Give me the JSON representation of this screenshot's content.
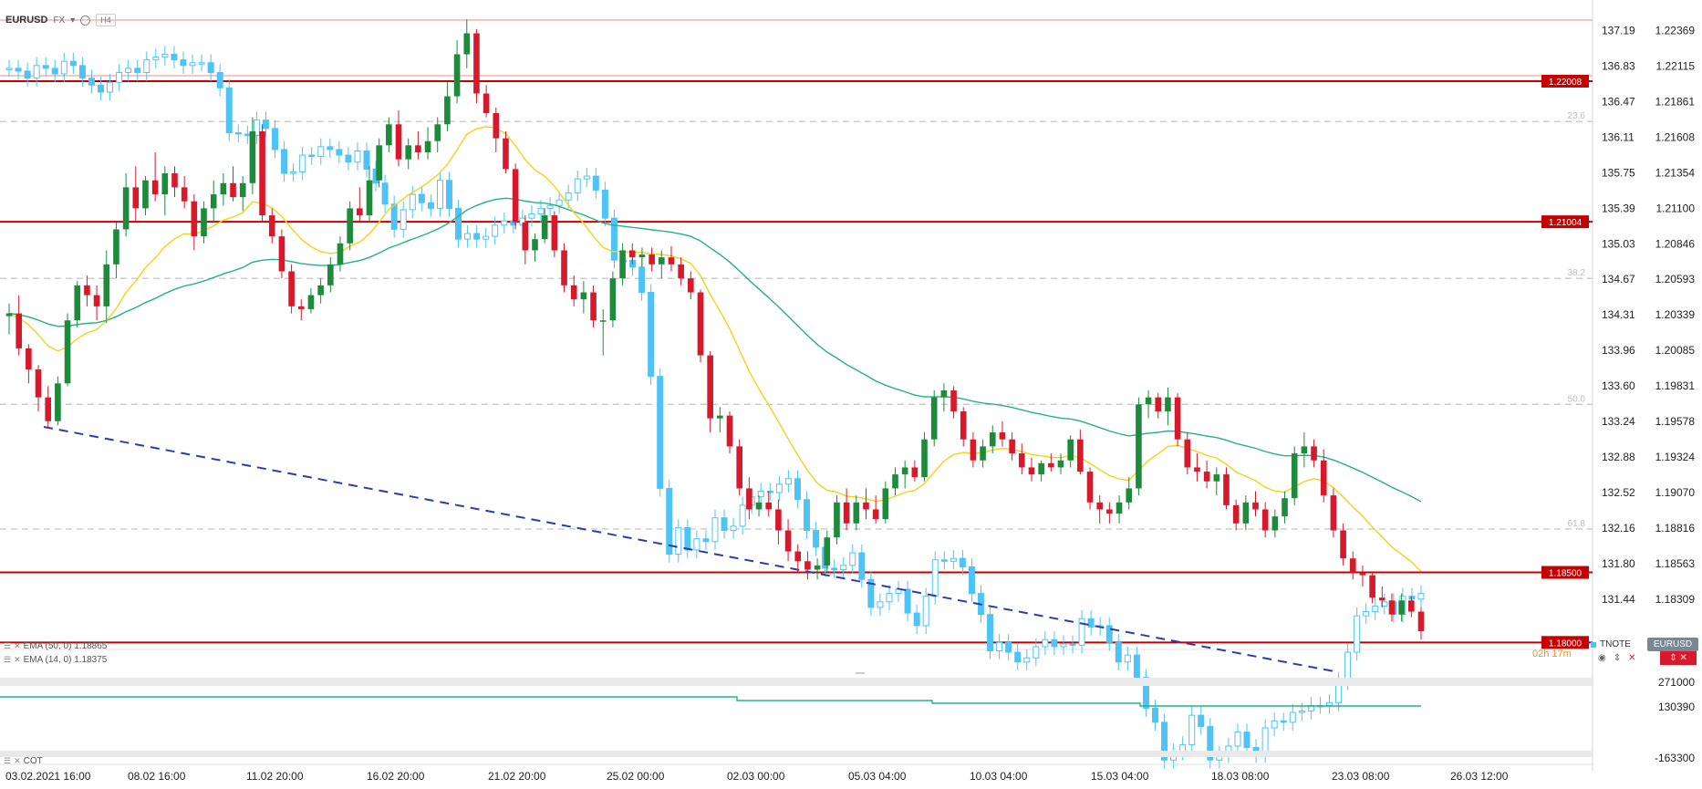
{
  "header": {
    "symbol": "EURUSD",
    "market": "FX",
    "interval": "H4"
  },
  "indicators": [
    {
      "label": "EMA (50, 0) 1.18865",
      "color": "#26b08a"
    },
    {
      "label": "EMA (14, 0) 1.18375",
      "color": "#f2d21b"
    }
  ],
  "sub_panel": {
    "label": "COT",
    "ticks": [
      "271000",
      "130390",
      "-163300"
    ]
  },
  "overlay": {
    "tnote": "TNOTE",
    "eurusd_badge": "EURUSD",
    "timer": "02h 17m"
  },
  "colors": {
    "up": "#1e8b3c",
    "down": "#d8192b",
    "tnote": "#4fc3f7",
    "levels": "#c40000",
    "trend": "#2c3cb0"
  },
  "chart_data": {
    "type": "candlestick",
    "series": [
      {
        "name": "EURUSD",
        "values": "ohlc"
      },
      {
        "name": "TNOTE"
      },
      {
        "name": "EMA (50, 0)",
        "last": 1.18865
      },
      {
        "name": "EMA (14, 0)",
        "last": 1.18375
      }
    ],
    "x_ticks": [
      "03.02.2021 16:00",
      "08.02 16:00",
      "11.02 20:00",
      "16.02 20:00",
      "21.02 20:00",
      "25.02 00:00",
      "02.03 00:00",
      "05.03 04:00",
      "10.03 04:00",
      "15.03 04:00",
      "18.03 08:00",
      "23.03 08:00",
      "26.03 12:00"
    ],
    "y_ticks_right": [
      "1.22369",
      "1.22115",
      "1.21861",
      "1.21608",
      "1.21354",
      "1.21100",
      "1.20846",
      "1.20593",
      "1.20339",
      "1.20085",
      "1.19831",
      "1.19578",
      "1.19324",
      "1.19070",
      "1.18816",
      "1.18563",
      "1.18309"
    ],
    "y_ticks_left": [
      "137.19",
      "136.83",
      "136.47",
      "136.11",
      "135.75",
      "135.39",
      "135.03",
      "134.67",
      "134.31",
      "133.96",
      "133.60",
      "133.24",
      "132.88",
      "132.52",
      "132.16",
      "131.80",
      "131.44"
    ],
    "ylim": [
      1.1795,
      1.2249
    ],
    "horizontal_levels": [
      1.22008,
      1.21004,
      1.185,
      1.18
    ],
    "level_labels": [
      "1.22008",
      "1.21004",
      "1.18500",
      "1.18000"
    ],
    "fibonacci_levels": [
      {
        "label": "23.6",
        "value": 1.2172
      },
      {
        "label": "38.2",
        "value": 1.206
      },
      {
        "label": "50.0",
        "value": 1.197
      },
      {
        "label": "61.8",
        "value": 1.1881
      }
    ],
    "candles": [
      [
        1.2033,
        1.2042,
        1.202,
        1.2035
      ],
      [
        1.2035,
        1.2048,
        1.2005,
        1.201
      ],
      [
        1.201,
        1.2013,
        1.1985,
        1.1995
      ],
      [
        1.1995,
        1.1998,
        1.1965,
        1.1975
      ],
      [
        1.1975,
        1.1983,
        1.1953,
        1.1958
      ],
      [
        1.1958,
        1.199,
        1.1955,
        1.1985
      ],
      [
        1.1985,
        1.2035,
        1.1983,
        1.203
      ],
      [
        1.203,
        1.2058,
        1.2025,
        1.2055
      ],
      [
        1.2055,
        1.2062,
        1.204,
        1.2048
      ],
      [
        1.2048,
        1.2055,
        1.203,
        1.204
      ],
      [
        1.204,
        1.208,
        1.2028,
        1.207
      ],
      [
        1.207,
        1.21,
        1.206,
        1.2095
      ],
      [
        1.2095,
        1.2135,
        1.209,
        1.2125
      ],
      [
        1.2125,
        1.214,
        1.21,
        1.211
      ],
      [
        1.211,
        1.2133,
        1.2105,
        1.213
      ],
      [
        1.213,
        1.215,
        1.2115,
        1.212
      ],
      [
        1.212,
        1.214,
        1.2105,
        1.2135
      ],
      [
        1.2135,
        1.214,
        1.2118,
        1.2125
      ],
      [
        1.2125,
        1.2133,
        1.211,
        1.2115
      ],
      [
        1.2115,
        1.212,
        1.208,
        1.209
      ],
      [
        1.209,
        1.2115,
        1.2085,
        1.211
      ],
      [
        1.211,
        1.213,
        1.21,
        1.212
      ],
      [
        1.212,
        1.2135,
        1.2112,
        1.2128
      ],
      [
        1.2128,
        1.214,
        1.2115,
        1.2118
      ],
      [
        1.2118,
        1.2133,
        1.2108,
        1.2128
      ],
      [
        1.2128,
        1.2175,
        1.212,
        1.2165
      ],
      [
        1.2165,
        1.217,
        1.21,
        1.2105
      ],
      [
        1.2105,
        1.211,
        1.2085,
        1.209
      ],
      [
        1.209,
        1.2095,
        1.206,
        1.2065
      ],
      [
        1.2065,
        1.207,
        1.2035,
        1.204
      ],
      [
        1.204,
        1.2045,
        1.203,
        1.2038
      ],
      [
        1.2038,
        1.2053,
        1.2035,
        1.2048
      ],
      [
        1.2048,
        1.206,
        1.2042,
        1.2055
      ],
      [
        1.2055,
        1.2075,
        1.205,
        1.207
      ],
      [
        1.207,
        1.209,
        1.2065,
        1.2085
      ],
      [
        1.2085,
        1.2115,
        1.208,
        1.211
      ],
      [
        1.211,
        1.2125,
        1.21,
        1.2105
      ],
      [
        1.2105,
        1.214,
        1.21,
        1.213
      ],
      [
        1.213,
        1.216,
        1.2125,
        1.2155
      ],
      [
        1.2155,
        1.2175,
        1.215,
        1.217
      ],
      [
        1.217,
        1.218,
        1.214,
        1.2145
      ],
      [
        1.2145,
        1.216,
        1.2138,
        1.2155
      ],
      [
        1.2155,
        1.2165,
        1.2145,
        1.215
      ],
      [
        1.215,
        1.2168,
        1.2145,
        1.2158
      ],
      [
        1.2158,
        1.2175,
        1.215,
        1.217
      ],
      [
        1.217,
        1.22,
        1.2165,
        1.219
      ],
      [
        1.219,
        1.223,
        1.2185,
        1.222
      ],
      [
        1.222,
        1.2245,
        1.221,
        1.2235
      ],
      [
        1.2235,
        1.2238,
        1.2185,
        1.2192
      ],
      [
        1.2192,
        1.2198,
        1.2175,
        1.2178
      ],
      [
        1.2178,
        1.2182,
        1.215,
        1.216
      ],
      [
        1.216,
        1.2165,
        1.2135,
        1.2138
      ],
      [
        1.2138,
        1.2142,
        1.2095,
        1.21
      ],
      [
        1.21,
        1.2105,
        1.207,
        1.208
      ],
      [
        1.208,
        1.2092,
        1.2072,
        1.2088
      ],
      [
        1.2088,
        1.211,
        1.2085,
        1.2105
      ],
      [
        1.2105,
        1.2108,
        1.2075,
        1.208
      ],
      [
        1.208,
        1.2085,
        1.205,
        1.2055
      ],
      [
        1.2055,
        1.2062,
        1.204,
        1.2045
      ],
      [
        1.2045,
        1.2058,
        1.2035,
        1.205
      ],
      [
        1.205,
        1.2055,
        1.2025,
        1.203
      ],
      [
        1.203,
        1.2038,
        1.2005,
        1.203
      ],
      [
        1.203,
        1.2065,
        1.2025,
        1.206
      ],
      [
        1.206,
        1.2085,
        1.2055,
        1.208
      ],
      [
        1.208,
        1.2085,
        1.207,
        1.2075
      ],
      [
        1.2075,
        1.2082,
        1.2068,
        1.2077
      ],
      [
        1.2077,
        1.2082,
        1.2065,
        1.207
      ],
      [
        1.207,
        1.208,
        1.206,
        1.2075
      ],
      [
        1.2075,
        1.2083,
        1.2065,
        1.207
      ],
      [
        1.207,
        1.2075,
        1.2055,
        1.206
      ],
      [
        1.206,
        1.2065,
        1.2045,
        1.205
      ],
      [
        1.205,
        1.2052,
        1.2,
        1.2005
      ],
      [
        1.2005,
        1.2008,
        1.195,
        1.196
      ],
      [
        1.196,
        1.1968,
        1.195,
        1.1962
      ],
      [
        1.1962,
        1.1965,
        1.1935,
        1.194
      ],
      [
        1.194,
        1.1945,
        1.1905,
        1.191
      ],
      [
        1.191,
        1.1918,
        1.1888,
        1.1895
      ],
      [
        1.1895,
        1.1905,
        1.189,
        1.19
      ],
      [
        1.19,
        1.1908,
        1.189,
        1.1895
      ],
      [
        1.1895,
        1.1902,
        1.187,
        1.188
      ],
      [
        1.188,
        1.1888,
        1.1858,
        1.1865
      ],
      [
        1.1865,
        1.187,
        1.185,
        1.1858
      ],
      [
        1.1858,
        1.1865,
        1.1845,
        1.1852
      ],
      [
        1.1852,
        1.186,
        1.1845,
        1.1855
      ],
      [
        1.1855,
        1.188,
        1.185,
        1.1875
      ],
      [
        1.1875,
        1.1905,
        1.187,
        1.19
      ],
      [
        1.19,
        1.191,
        1.188,
        1.1885
      ],
      [
        1.1885,
        1.1905,
        1.188,
        1.19
      ],
      [
        1.19,
        1.191,
        1.1888,
        1.1895
      ],
      [
        1.1895,
        1.1905,
        1.1885,
        1.1888
      ],
      [
        1.1888,
        1.1915,
        1.1885,
        1.191
      ],
      [
        1.191,
        1.1925,
        1.1905,
        1.192
      ],
      [
        1.192,
        1.193,
        1.191,
        1.1925
      ],
      [
        1.1925,
        1.193,
        1.1915,
        1.1918
      ],
      [
        1.1918,
        1.195,
        1.1915,
        1.1945
      ],
      [
        1.1945,
        1.198,
        1.194,
        1.1975
      ],
      [
        1.1975,
        1.1985,
        1.1965,
        1.198
      ],
      [
        1.198,
        1.1983,
        1.196,
        1.1965
      ],
      [
        1.1965,
        1.1968,
        1.194,
        1.1945
      ],
      [
        1.1945,
        1.195,
        1.1925,
        1.193
      ],
      [
        1.193,
        1.1945,
        1.1925,
        1.194
      ],
      [
        1.194,
        1.1955,
        1.1935,
        1.195
      ],
      [
        1.195,
        1.1958,
        1.194,
        1.1945
      ],
      [
        1.1945,
        1.195,
        1.193,
        1.1935
      ],
      [
        1.1935,
        1.1942,
        1.192,
        1.1925
      ],
      [
        1.1925,
        1.1932,
        1.1915,
        1.192
      ],
      [
        1.192,
        1.193,
        1.1915,
        1.1928
      ],
      [
        1.1928,
        1.1935,
        1.1922,
        1.1925
      ],
      [
        1.1925,
        1.1935,
        1.192,
        1.193
      ],
      [
        1.193,
        1.1948,
        1.1925,
        1.1945
      ],
      [
        1.1945,
        1.1952,
        1.192,
        1.1922
      ],
      [
        1.1922,
        1.1925,
        1.1895,
        1.19
      ],
      [
        1.19,
        1.1905,
        1.1885,
        1.1895
      ],
      [
        1.1895,
        1.19,
        1.1885,
        1.1892
      ],
      [
        1.1892,
        1.1905,
        1.1885,
        1.19
      ],
      [
        1.19,
        1.1918,
        1.1895,
        1.191
      ],
      [
        1.191,
        1.1975,
        1.1905,
        1.197
      ],
      [
        1.197,
        1.198,
        1.196,
        1.1975
      ],
      [
        1.1975,
        1.1978,
        1.196,
        1.1965
      ],
      [
        1.1965,
        1.1982,
        1.1955,
        1.1975
      ],
      [
        1.1975,
        1.1978,
        1.194,
        1.1945
      ],
      [
        1.1945,
        1.195,
        1.192,
        1.1925
      ],
      [
        1.1925,
        1.1935,
        1.1915,
        1.1922
      ],
      [
        1.1922,
        1.193,
        1.191,
        1.1915
      ],
      [
        1.1915,
        1.1925,
        1.1905,
        1.192
      ],
      [
        1.192,
        1.1925,
        1.1895,
        1.1898
      ],
      [
        1.1898,
        1.1902,
        1.188,
        1.1885
      ],
      [
        1.1885,
        1.1905,
        1.188,
        1.19
      ],
      [
        1.19,
        1.1908,
        1.189,
        1.1895
      ],
      [
        1.1895,
        1.19,
        1.1875,
        1.188
      ],
      [
        1.188,
        1.1895,
        1.1875,
        1.189
      ],
      [
        1.189,
        1.1908,
        1.1885,
        1.1903
      ],
      [
        1.1903,
        1.194,
        1.1898,
        1.1935
      ],
      [
        1.1935,
        1.195,
        1.1925,
        1.194
      ],
      [
        1.194,
        1.1945,
        1.1925,
        1.193
      ],
      [
        1.193,
        1.1938,
        1.19,
        1.1905
      ],
      [
        1.1905,
        1.191,
        1.1875,
        1.188
      ],
      [
        1.188,
        1.1885,
        1.1855,
        1.186
      ],
      [
        1.186,
        1.1865,
        1.1845,
        1.185
      ],
      [
        1.185,
        1.1855,
        1.184,
        1.1848
      ],
      [
        1.1848,
        1.185,
        1.1828,
        1.1832
      ],
      [
        1.1832,
        1.184,
        1.1825,
        1.183
      ],
      [
        1.183,
        1.1835,
        1.1815,
        1.182
      ],
      [
        1.182,
        1.1835,
        1.1815,
        1.183
      ],
      [
        1.183,
        1.1833,
        1.1818,
        1.1822
      ],
      [
        1.1822,
        1.1825,
        1.1802,
        1.1808
      ]
    ],
    "tnote_closes": [
      1.221,
      1.2208,
      1.2203,
      1.2212,
      1.221,
      1.2206,
      1.2215,
      1.2212,
      1.2203,
      1.2198,
      1.2193,
      1.22,
      1.2207,
      1.221,
      1.2207,
      1.2216,
      1.2218,
      1.222,
      1.2216,
      1.2212,
      1.2214,
      1.2214,
      1.2207,
      1.2196,
      1.2164,
      1.2163,
      1.2162,
      1.2173,
      1.2167,
      1.2152,
      1.2135,
      1.2136,
      1.2148,
      1.2147,
      1.2154,
      1.2152,
      1.2148,
      1.2143,
      1.2151,
      1.2138,
      1.2128,
      1.2113,
      1.2095,
      1.2109,
      1.212,
      1.2114,
      1.211,
      1.213,
      1.211,
      1.2088,
      1.2092,
      1.2088,
      1.209,
      1.2098,
      1.2101,
      1.2098,
      1.2103,
      1.2106,
      1.211,
      1.2112,
      1.2116,
      1.2121,
      1.2131,
      1.2133,
      1.2123,
      1.2103,
      1.2073,
      1.2073,
      1.2068,
      1.205,
      1.199,
      1.191,
      1.1863,
      1.1882,
      1.1866,
      1.1874,
      1.1872,
      1.1889,
      1.188,
      1.1883,
      1.1898,
      1.1904,
      1.1908,
      1.1907,
      1.1913,
      1.1917,
      1.1902,
      1.188,
      1.1868,
      1.1853,
      1.1852,
      1.1855,
      1.1864,
      1.1845,
      1.1825,
      1.1829,
      1.1835,
      1.1838,
      1.1821,
      1.1812,
      1.1833,
      1.1859,
      1.1858,
      1.186,
      1.1854,
      1.1835,
      1.182,
      1.1794,
      1.18,
      1.1793,
      1.1786,
      1.1789,
      1.1797,
      1.1802,
      1.1797,
      1.1799,
      1.1798,
      1.1817,
      1.1811,
      1.1812,
      1.18,
      1.1786,
      1.1791,
      1.1775,
      1.1753,
      1.1743,
      1.1716,
      1.1722,
      1.1727,
      1.1748,
      1.174,
      1.1716,
      1.172,
      1.1726,
      1.1736,
      1.1725,
      1.172,
      1.1739,
      1.1744,
      1.1743,
      1.175,
      1.1751,
      1.1755,
      1.1755,
      1.1757,
      1.1772,
      1.1793,
      1.1819,
      1.1822,
      1.1826,
      1.1829,
      1.182,
      1.1833,
      1.1831,
      1.1835
    ]
  }
}
